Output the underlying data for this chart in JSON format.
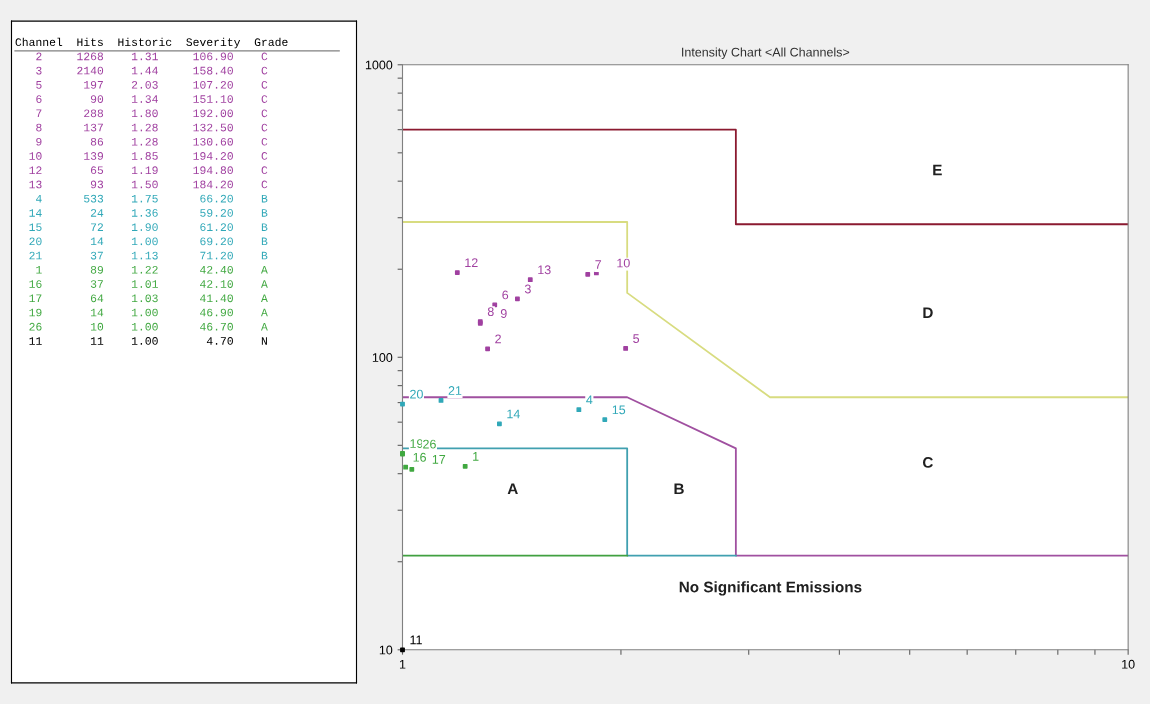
{
  "chart_data": [
    {
      "type": "other",
      "annotations": [
        "Channel  Hits  Historic  Severity  Grade",
        "   2     1268    1.31     106.90    C",
        "   3     2140    1.44     158.40    C",
        "   5      197    2.03     107.20    C",
        "   6       90    1.34     151.10    C",
        "   7      288    1.80     192.00    C",
        "   8      137    1.28     132.50    C",
        "   9       86    1.28     130.60    C",
        "  10      139    1.85     194.20    C",
        "  12       65    1.19     194.80    C",
        "  13       93    1.50     184.20    C",
        "   4      533    1.75      66.20    B",
        "  14       24    1.36      59.20    B",
        "  15       72    1.90      61.20    B",
        "  20       14    1.00      69.20    B",
        "  21       37    1.13      71.20    B",
        "   1       89    1.22      42.40    A",
        "  16       37    1.01      42.10    A",
        "  17       64    1.03      41.40    A",
        "  19       14    1.00      46.90    A",
        "  26       10    1.00      46.70    A",
        "  11       11    1.00       4.70    N"
      ],
      "colors": [
        "#000000",
        "#a040a0",
        "#a040a0",
        "#a040a0",
        "#a040a0",
        "#a040a0",
        "#a040a0",
        "#a040a0",
        "#a040a0",
        "#a040a0",
        "#a040a0",
        "#30a8b8",
        "#30a8b8",
        "#30a8b8",
        "#30a8b8",
        "#30a8b8",
        "#40a840",
        "#40a840",
        "#40a840",
        "#40a840",
        "#40a840",
        "#000000"
      ]
    },
    {
      "type": "scatter",
      "title": "Intensity Chart <All Channels>",
      "log": "xy",
      "xlim": [
        1,
        10
      ],
      "ylim": [
        10,
        1000
      ],
      "xticks": [
        1,
        {
          "value": 2,
          "label": null
        },
        {
          "value": 3,
          "label": null
        },
        {
          "value": 4,
          "label": null
        },
        {
          "value": 5,
          "label": null
        },
        {
          "value": 6,
          "label": null
        },
        {
          "value": 7,
          "label": null
        },
        {
          "value": 8,
          "label": null
        },
        {
          "value": 9,
          "label": null
        },
        10
      ],
      "yticks": [
        10,
        {
          "value": 20,
          "label": null
        },
        {
          "value": 30,
          "label": null
        },
        {
          "value": 40,
          "label": null
        },
        {
          "value": 50,
          "label": null
        },
        {
          "value": 60,
          "label": null
        },
        {
          "value": 70,
          "label": null
        },
        {
          "value": 80,
          "label": null
        },
        {
          "value": 90,
          "label": null
        },
        100,
        {
          "value": 200,
          "label": null
        },
        {
          "value": 300,
          "label": null
        },
        {
          "value": 400,
          "label": null
        },
        {
          "value": 500,
          "label": null
        },
        {
          "value": 600,
          "label": null
        },
        {
          "value": 700,
          "label": null
        },
        {
          "value": 800,
          "label": null
        },
        {
          "value": 900,
          "label": null
        },
        1000
      ],
      "grid": false,
      "legend": false,
      "marker": "square",
      "series": [
        {
          "type": "line",
          "marker": "none",
          "color": "#8b1a30",
          "x": [
            1,
            2.88,
            2.88,
            10
          ],
          "values": [
            600,
            600,
            285,
            285
          ]
        },
        {
          "type": "line",
          "marker": "none",
          "color": "#d8dc80",
          "x": [
            1,
            2.04,
            2.04,
            3.21,
            10
          ],
          "values": [
            290,
            290,
            166,
            73,
            73
          ]
        },
        {
          "type": "line",
          "marker": "none",
          "color": "#a050a0",
          "x": [
            1,
            2.04,
            2.88,
            2.88,
            10
          ],
          "values": [
            73,
            73,
            48.8,
            21,
            21
          ]
        },
        {
          "type": "line",
          "marker": "none",
          "color": "#40a0b0",
          "x": [
            1,
            2.04,
            2.04,
            2.88
          ],
          "values": [
            48.8,
            48.8,
            21,
            21
          ]
        },
        {
          "type": "line",
          "marker": "none",
          "color": "#40a040",
          "x": [
            1,
            2.04
          ],
          "values": [
            21,
            21
          ]
        },
        {
          "name": "2",
          "color": "#a040a0",
          "x": [
            1.31
          ],
          "values": [
            106.9
          ]
        },
        {
          "name": "3",
          "color": "#a040a0",
          "x": [
            1.44
          ],
          "values": [
            158.4
          ]
        },
        {
          "name": "5",
          "color": "#a040a0",
          "x": [
            2.03
          ],
          "values": [
            107.2
          ]
        },
        {
          "name": "6",
          "color": "#a040a0",
          "x": [
            1.34
          ],
          "values": [
            151.1
          ]
        },
        {
          "name": "7",
          "color": "#a040a0",
          "x": [
            1.8
          ],
          "values": [
            192.0
          ]
        },
        {
          "name": "8",
          "color": "#a040a0",
          "x": [
            1.28
          ],
          "values": [
            132.5
          ]
        },
        {
          "name": "9",
          "color": "#a040a0",
          "x": [
            1.28
          ],
          "values": [
            130.6
          ]
        },
        {
          "name": "10",
          "color": "#a040a0",
          "x": [
            1.85
          ],
          "values": [
            194.2
          ]
        },
        {
          "name": "12",
          "color": "#a040a0",
          "x": [
            1.19
          ],
          "values": [
            194.8
          ]
        },
        {
          "name": "13",
          "color": "#a040a0",
          "x": [
            1.5
          ],
          "values": [
            184.2
          ]
        },
        {
          "name": "4",
          "color": "#30a8b8",
          "x": [
            1.75
          ],
          "values": [
            66.2
          ]
        },
        {
          "name": "14",
          "color": "#30a8b8",
          "x": [
            1.36
          ],
          "values": [
            59.2
          ]
        },
        {
          "name": "15",
          "color": "#30a8b8",
          "x": [
            1.9
          ],
          "values": [
            61.2
          ]
        },
        {
          "name": "20",
          "color": "#30a8b8",
          "x": [
            1.0
          ],
          "values": [
            69.2
          ]
        },
        {
          "name": "21",
          "color": "#30a8b8",
          "x": [
            1.13
          ],
          "values": [
            71.2
          ]
        },
        {
          "name": "1",
          "color": "#40a840",
          "x": [
            1.22
          ],
          "values": [
            42.4
          ]
        },
        {
          "name": "16",
          "color": "#40a840",
          "x": [
            1.01
          ],
          "values": [
            42.1
          ]
        },
        {
          "name": "17",
          "color": "#40a840",
          "x": [
            1.03
          ],
          "values": [
            41.4
          ]
        },
        {
          "name": "19",
          "color": "#40a840",
          "x": [
            1.0
          ],
          "values": [
            46.9
          ]
        },
        {
          "name": "26",
          "color": "#40a840",
          "x": [
            1.0
          ],
          "values": [
            46.7
          ]
        },
        {
          "name": "11",
          "color": "#000000",
          "x": [
            1.0
          ],
          "values": [
            10
          ]
        }
      ],
      "annotations": [
        "E",
        "D",
        "C",
        "B",
        "A",
        "No Significant Emissions"
      ]
    }
  ]
}
